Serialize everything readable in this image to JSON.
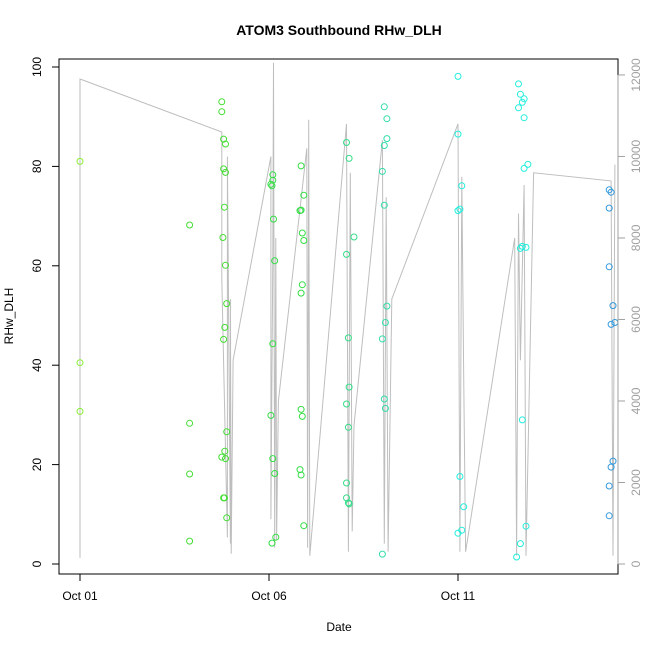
{
  "chart_data": {
    "type": "scatter",
    "title": "ATOM3 Southbound RHw_DLH",
    "xlabel": "Date",
    "ylabel": "RHw_DLH",
    "x_unit": "days since Oct 01",
    "xlim": [
      0,
      13.8
    ],
    "ylim": [
      0,
      100
    ],
    "x_ticks": [
      {
        "value": 0,
        "label": "Oct 01"
      },
      {
        "value": 5,
        "label": "Oct 06"
      },
      {
        "value": 10,
        "label": "Oct 11"
      }
    ],
    "y_ticks": [
      0,
      20,
      40,
      60,
      80,
      100
    ],
    "y2_ticks": [
      0,
      2000,
      4000,
      6000,
      8000,
      10000,
      12000
    ],
    "y2_range_at_left_axis": [
      0,
      100
    ],
    "y2_to_y_scale": 0.0082,
    "box": true,
    "grid": false,
    "colors": {
      "axis": "#000000",
      "secondary_axis": "#a0a0a0",
      "secondary_line": "#bebebe",
      "points_green": "#33dd33",
      "points_cyan": "#22dddd",
      "points_blue": "#3399dd"
    },
    "series": [
      {
        "color": "#88ee33",
        "points": [
          [
            0,
            81
          ],
          [
            0,
            40.5
          ],
          [
            0,
            30.7
          ]
        ]
      },
      {
        "color": "#44dd33",
        "points": [
          [
            2.9,
            68.2
          ],
          [
            2.9,
            28.3
          ],
          [
            2.9,
            18.1
          ],
          [
            2.9,
            4.6
          ],
          [
            3.75,
            93
          ],
          [
            3.75,
            91
          ],
          [
            3.8,
            85.5
          ],
          [
            3.85,
            84.5
          ],
          [
            3.8,
            79.5
          ],
          [
            3.85,
            78.8
          ],
          [
            3.82,
            71.8
          ],
          [
            3.78,
            65.7
          ],
          [
            3.85,
            60.1
          ],
          [
            3.88,
            52.4
          ],
          [
            3.83,
            47.6
          ],
          [
            3.8,
            45.2
          ],
          [
            3.88,
            26.6
          ],
          [
            3.75,
            21.5
          ],
          [
            3.83,
            22.7
          ],
          [
            3.85,
            21.2
          ],
          [
            3.8,
            13.3
          ],
          [
            3.82,
            13.3
          ],
          [
            3.88,
            9.3
          ]
        ]
      },
      {
        "color": "#33dd44",
        "points": [
          [
            5.1,
            78.3
          ],
          [
            5.05,
            76.4
          ],
          [
            5.1,
            77.2
          ],
          [
            5.08,
            76.1
          ],
          [
            5.12,
            69.4
          ],
          [
            5.15,
            61
          ],
          [
            5.1,
            44.3
          ],
          [
            5.05,
            29.9
          ],
          [
            5.1,
            21.2
          ],
          [
            5.15,
            18.2
          ],
          [
            5.18,
            5.4
          ],
          [
            5.08,
            4.2
          ],
          [
            5.85,
            80.1
          ],
          [
            5.92,
            74.2
          ],
          [
            5.85,
            71.2
          ],
          [
            5.82,
            71.1
          ],
          [
            5.88,
            66.6
          ],
          [
            5.92,
            65.1
          ],
          [
            5.88,
            56.2
          ],
          [
            5.85,
            54.5
          ],
          [
            5.85,
            31.1
          ],
          [
            5.88,
            29.7
          ],
          [
            5.82,
            19
          ],
          [
            5.85,
            17.9
          ],
          [
            5.92,
            7.7
          ]
        ]
      },
      {
        "color": "#33dd88",
        "points": [
          [
            7.05,
            84.8
          ],
          [
            7.12,
            81.6
          ],
          [
            7.25,
            65.8
          ],
          [
            7.05,
            62.3
          ],
          [
            7.1,
            45.5
          ],
          [
            7.12,
            35.6
          ],
          [
            7.05,
            32.2
          ],
          [
            7.1,
            27.5
          ],
          [
            7.05,
            16.3
          ],
          [
            7.05,
            13.3
          ],
          [
            7.1,
            12.3
          ],
          [
            7.12,
            12.1
          ]
        ]
      },
      {
        "color": "#33ddaa",
        "points": [
          [
            8.05,
            92
          ],
          [
            8.12,
            89.6
          ],
          [
            8.12,
            85.6
          ],
          [
            8.05,
            84.2
          ],
          [
            8,
            79
          ],
          [
            8.05,
            72.2
          ],
          [
            8.12,
            51.9
          ],
          [
            8.08,
            48.6
          ],
          [
            8,
            45.3
          ],
          [
            8.05,
            33.2
          ],
          [
            8.08,
            31.3
          ],
          [
            8,
            2
          ]
        ]
      },
      {
        "color": "#22eedd",
        "points": [
          [
            10,
            98.1
          ],
          [
            10,
            86.5
          ],
          [
            10.1,
            76.1
          ],
          [
            10.05,
            71.4
          ],
          [
            10,
            71.1
          ],
          [
            10.05,
            17.6
          ],
          [
            10.15,
            11.5
          ],
          [
            10.1,
            6.8
          ],
          [
            10,
            6.2
          ],
          [
            11.6,
            96.6
          ],
          [
            11.65,
            94.5
          ],
          [
            11.75,
            93.6
          ],
          [
            11.7,
            92.9
          ],
          [
            11.6,
            91.8
          ],
          [
            11.75,
            89.8
          ],
          [
            11.85,
            80.4
          ],
          [
            11.75,
            79.6
          ],
          [
            11.7,
            63.9
          ],
          [
            11.8,
            63.7
          ],
          [
            11.65,
            63.5
          ],
          [
            11.7,
            29
          ],
          [
            11.8,
            7.6
          ],
          [
            11.65,
            4.1
          ],
          [
            11.55,
            1.4
          ]
        ]
      },
      {
        "color": "#3399dd",
        "points": [
          [
            14,
            75.3
          ],
          [
            14.05,
            74.8
          ],
          [
            14,
            71.6
          ],
          [
            14,
            59.8
          ],
          [
            14.1,
            52
          ],
          [
            14.15,
            48.6
          ],
          [
            14.05,
            48.2
          ],
          [
            14.1,
            20.7
          ],
          [
            14.05,
            19.5
          ],
          [
            14,
            15.7
          ],
          [
            14,
            9.7
          ]
        ]
      }
    ],
    "secondary_line": [
      [
        0,
        150
      ],
      [
        0,
        11900
      ],
      [
        3.75,
        10600
      ],
      [
        3.75,
        7000
      ],
      [
        3.9,
        650
      ],
      [
        3.9,
        10000
      ],
      [
        3.98,
        500
      ],
      [
        3.98,
        6500
      ],
      [
        4.0,
        250
      ],
      [
        4.05,
        5000
      ],
      [
        5.05,
        10000
      ],
      [
        5.05,
        1100
      ],
      [
        5.1,
        7500
      ],
      [
        5.12,
        12300
      ],
      [
        5.15,
        400
      ],
      [
        5.18,
        8000
      ],
      [
        5.2,
        600
      ],
      [
        5.25,
        4000
      ],
      [
        6.0,
        10200
      ],
      [
        6.02,
        400
      ],
      [
        6.05,
        10900
      ],
      [
        6.08,
        200
      ],
      [
        7.05,
        10800
      ],
      [
        7.1,
        300
      ],
      [
        7.15,
        9600
      ],
      [
        7.2,
        800
      ],
      [
        7.25,
        3400
      ],
      [
        8.0,
        10400
      ],
      [
        8.05,
        500
      ],
      [
        8.1,
        9000
      ],
      [
        8.15,
        300
      ],
      [
        8.25,
        6500
      ],
      [
        10.0,
        10800
      ],
      [
        10.05,
        300
      ],
      [
        10.1,
        9500
      ],
      [
        10.15,
        4600
      ],
      [
        10.2,
        300
      ],
      [
        11.5,
        8000
      ],
      [
        11.55,
        200
      ],
      [
        11.6,
        8600
      ],
      [
        11.65,
        5000
      ],
      [
        11.75,
        9300
      ],
      [
        11.8,
        200
      ],
      [
        12.0,
        9600
      ],
      [
        14.05,
        9400
      ],
      [
        14.1,
        200
      ],
      [
        14.15,
        9800
      ]
    ]
  }
}
